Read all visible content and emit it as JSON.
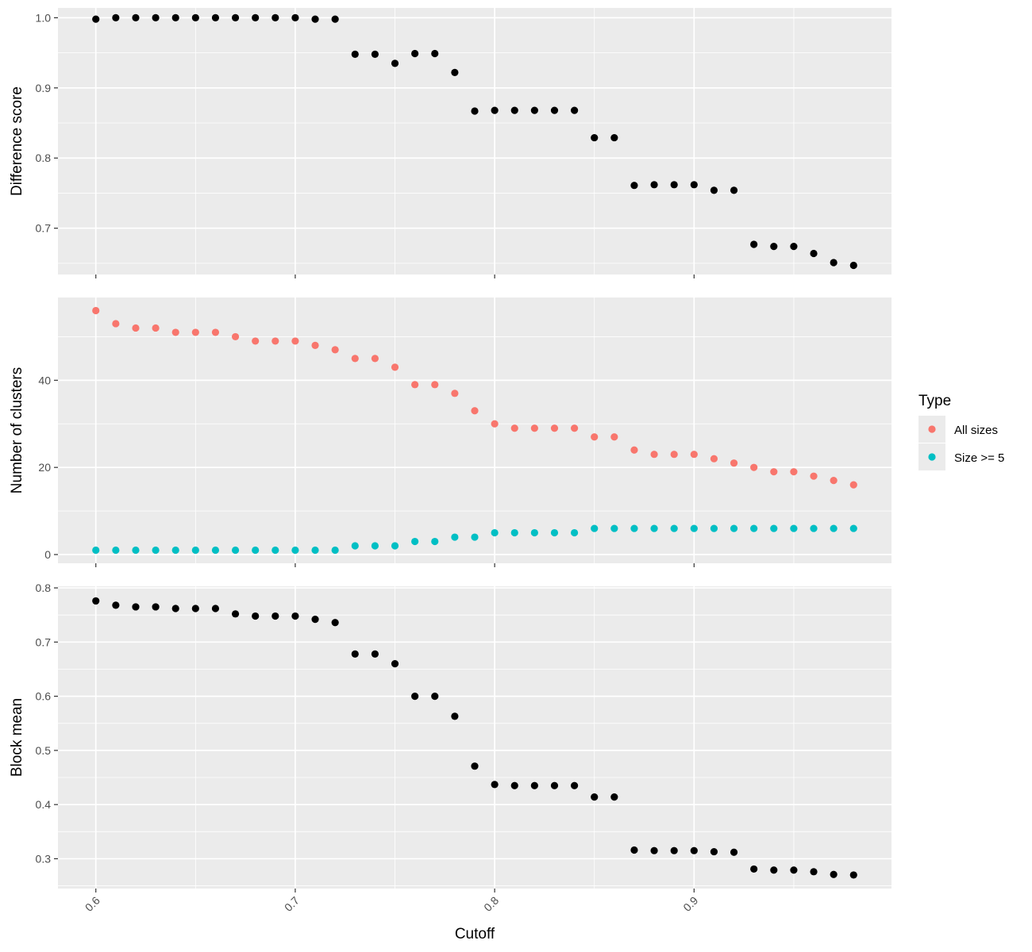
{
  "chart_data": {
    "type": "scatter",
    "xlabel": "Cutoff",
    "x_ticks": [
      0.6,
      0.7,
      0.8,
      0.9
    ],
    "x_tick_labels": [
      "0.6",
      "0.7",
      "0.8",
      "0.9"
    ],
    "xlim": [
      0.581,
      0.999
    ],
    "x": [
      0.6,
      0.61,
      0.62,
      0.63,
      0.64,
      0.65,
      0.66,
      0.67,
      0.68,
      0.69,
      0.7,
      0.71,
      0.72,
      0.73,
      0.74,
      0.75,
      0.76,
      0.77,
      0.78,
      0.79,
      0.8,
      0.81,
      0.82,
      0.83,
      0.84,
      0.85,
      0.86,
      0.87,
      0.88,
      0.89,
      0.9,
      0.91,
      0.92,
      0.93,
      0.94,
      0.95,
      0.96,
      0.97,
      0.98
    ],
    "grid": true,
    "legend": {
      "title": "Type",
      "position": "right",
      "entries": [
        {
          "label": "All sizes",
          "color": "#F8766D"
        },
        {
          "label": "Size >= 5",
          "color": "#00BFC4"
        }
      ]
    },
    "panels": [
      {
        "ylabel": "Difference score",
        "ylim": [
          0.634,
          1.014
        ],
        "y_ticks": [
          0.7,
          0.8,
          0.9,
          1.0
        ],
        "y_tick_labels": [
          "0.7",
          "0.8",
          "0.9",
          "1.0"
        ],
        "series": [
          {
            "color": "#000000",
            "values": [
              0.998,
              1.0,
              1.0,
              1.0,
              1.0,
              1.0,
              1.0,
              1.0,
              1.0,
              1.0,
              1.0,
              0.998,
              0.998,
              0.948,
              0.948,
              0.935,
              0.949,
              0.949,
              0.922,
              0.867,
              0.868,
              0.868,
              0.868,
              0.868,
              0.868,
              0.829,
              0.829,
              0.761,
              0.762,
              0.762,
              0.762,
              0.754,
              0.754,
              0.677,
              0.674,
              0.674,
              0.664,
              0.651,
              0.647
            ]
          }
        ]
      },
      {
        "ylabel": "Number of clusters",
        "ylim": [
          -2.0,
          59.0
        ],
        "y_ticks": [
          0,
          20,
          40
        ],
        "y_tick_labels": [
          "0",
          "20",
          "40"
        ],
        "series": [
          {
            "name": "All sizes",
            "color": "#F8766D",
            "values": [
              56,
              53,
              52,
              52,
              51,
              51,
              51,
              50,
              49,
              49,
              49,
              48,
              47,
              45,
              45,
              43,
              39,
              39,
              37,
              33,
              30,
              29,
              29,
              29,
              29,
              27,
              27,
              24,
              23,
              23,
              23,
              22,
              21,
              20,
              19,
              19,
              18,
              17,
              16
            ]
          },
          {
            "name": "Size >= 5",
            "color": "#00BFC4",
            "values": [
              1,
              1,
              1,
              1,
              1,
              1,
              1,
              1,
              1,
              1,
              1,
              1,
              1,
              2,
              2,
              2,
              3,
              3,
              4,
              4,
              5,
              5,
              5,
              5,
              5,
              6,
              6,
              6,
              6,
              6,
              6,
              6,
              6,
              6,
              6,
              6,
              6,
              6,
              6
            ]
          }
        ]
      },
      {
        "ylabel": "Block mean",
        "ylim": [
          0.245,
          0.803
        ],
        "y_ticks": [
          0.3,
          0.4,
          0.5,
          0.6,
          0.7,
          0.8
        ],
        "y_tick_labels": [
          "0.3",
          "0.4",
          "0.5",
          "0.6",
          "0.7",
          "0.8"
        ],
        "series": [
          {
            "color": "#000000",
            "values": [
              0.776,
              0.768,
              0.765,
              0.765,
              0.762,
              0.762,
              0.762,
              0.752,
              0.748,
              0.748,
              0.748,
              0.742,
              0.736,
              0.678,
              0.678,
              0.66,
              0.6,
              0.6,
              0.563,
              0.471,
              0.437,
              0.435,
              0.435,
              0.435,
              0.435,
              0.414,
              0.414,
              0.316,
              0.315,
              0.315,
              0.315,
              0.313,
              0.312,
              0.281,
              0.279,
              0.279,
              0.276,
              0.271,
              0.27
            ]
          }
        ]
      }
    ]
  }
}
